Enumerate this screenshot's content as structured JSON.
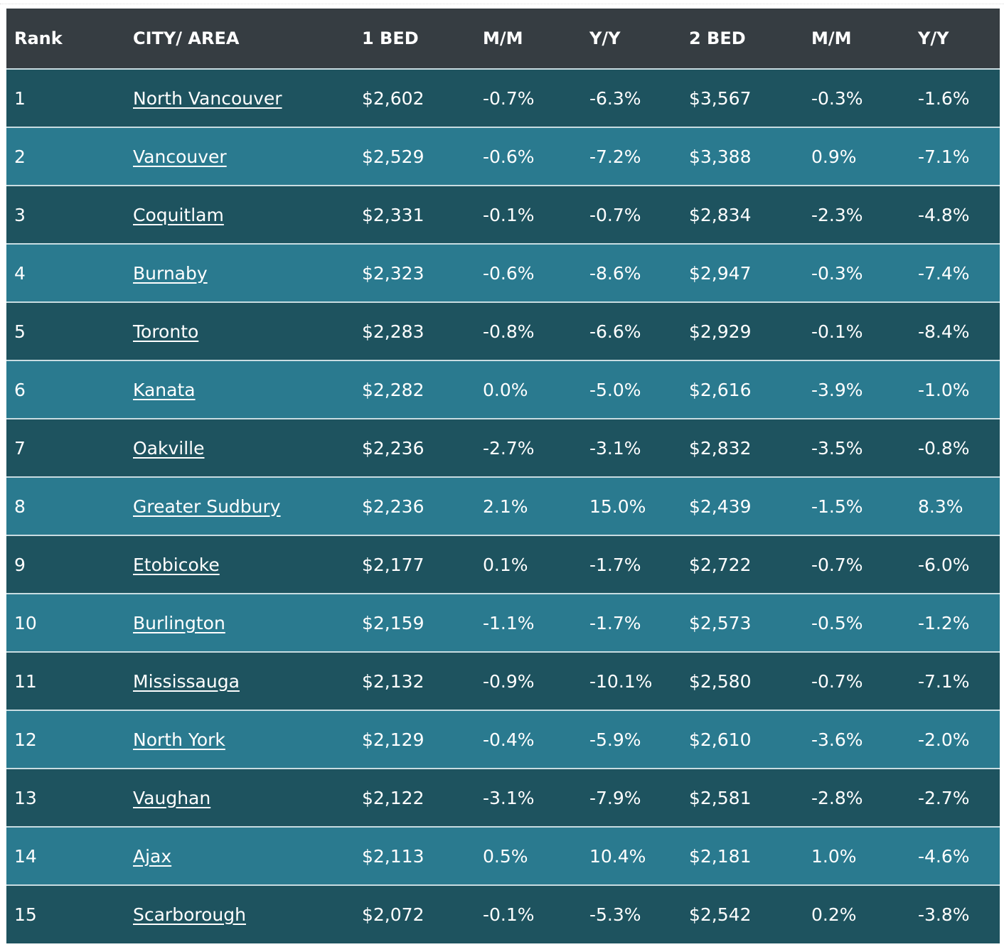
{
  "table": {
    "headers": [
      "Rank",
      "CITY/ AREA",
      "1 BED",
      "M/M",
      "Y/Y",
      "2 BED",
      "M/M",
      "Y/Y"
    ],
    "rows": [
      [
        "1",
        "North Vancouver",
        "$2,602",
        "-0.7%",
        "-6.3%",
        "$3,567",
        "-0.3%",
        "-1.6%"
      ],
      [
        "2",
        "Vancouver",
        "$2,529",
        "-0.6%",
        "-7.2%",
        "$3,388",
        "0.9%",
        "-7.1%"
      ],
      [
        "3",
        "Coquitlam",
        "$2,331",
        "-0.1%",
        "-0.7%",
        "$2,834",
        "-2.3%",
        "-4.8%"
      ],
      [
        "4",
        "Burnaby",
        "$2,323",
        "-0.6%",
        "-8.6%",
        "$2,947",
        "-0.3%",
        "-7.4%"
      ],
      [
        "5",
        "Toronto",
        "$2,283",
        "-0.8%",
        "-6.6%",
        "$2,929",
        "-0.1%",
        "-8.4%"
      ],
      [
        "6",
        "Kanata",
        "$2,282",
        "0.0%",
        "-5.0%",
        "$2,616",
        "-3.9%",
        "-1.0%"
      ],
      [
        "7",
        "Oakville",
        "$2,236",
        "-2.7%",
        "-3.1%",
        "$2,832",
        "-3.5%",
        "-0.8%"
      ],
      [
        "8",
        "Greater Sudbury",
        "$2,236",
        "2.1%",
        "15.0%",
        "$2,439",
        "-1.5%",
        "8.3%"
      ],
      [
        "9",
        "Etobicoke",
        "$2,177",
        "0.1%",
        "-1.7%",
        "$2,722",
        "-0.7%",
        "-6.0%"
      ],
      [
        "10",
        "Burlington",
        "$2,159",
        "-1.1%",
        "-1.7%",
        "$2,573",
        "-0.5%",
        "-1.2%"
      ],
      [
        "11",
        "Mississauga",
        "$2,132",
        "-0.9%",
        "-10.1%",
        "$2,580",
        "-0.7%",
        "-7.1%"
      ],
      [
        "12",
        "North York",
        "$2,129",
        "-0.4%",
        "-5.9%",
        "$2,610",
        "-3.6%",
        "-2.0%"
      ],
      [
        "13",
        "Vaughan",
        "$2,122",
        "-3.1%",
        "-7.9%",
        "$2,581",
        "-2.8%",
        "-2.7%"
      ],
      [
        "14",
        "Ajax",
        "$2,113",
        "0.5%",
        "10.4%",
        "$2,181",
        "1.0%",
        "-4.6%"
      ],
      [
        "15",
        "Scarborough",
        "$2,072",
        "-0.1%",
        "-5.3%",
        "$2,542",
        "0.2%",
        "-3.8%"
      ]
    ]
  }
}
